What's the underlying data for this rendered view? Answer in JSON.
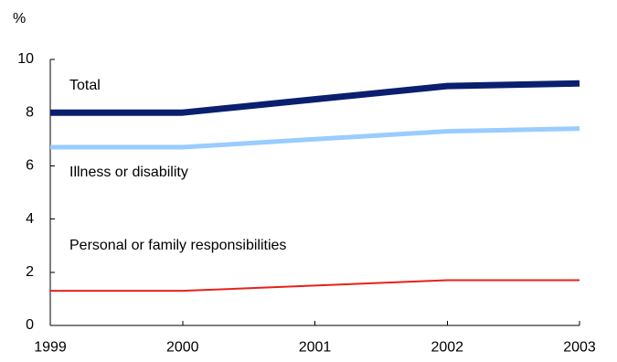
{
  "chart_data": {
    "type": "line",
    "title": "",
    "xlabel": "",
    "ylabel": "%",
    "x": [
      "1999",
      "2000",
      "2001",
      "2002",
      "2003"
    ],
    "ylim": [
      0,
      10
    ],
    "yticks": [
      "0",
      "2",
      "4",
      "6",
      "8",
      "10"
    ],
    "grid": false,
    "series": [
      {
        "name": "Total",
        "values": [
          8.0,
          8.0,
          8.5,
          9.0,
          9.1
        ],
        "color": "#0a1f6e"
      },
      {
        "name": "Illness or disability",
        "values": [
          6.7,
          6.7,
          7.0,
          7.3,
          7.4
        ],
        "color": "#99ccff"
      },
      {
        "name": "Personal or family responsibilities",
        "values": [
          1.3,
          1.3,
          1.5,
          1.7,
          1.7
        ],
        "color": "#e8201b"
      }
    ]
  }
}
